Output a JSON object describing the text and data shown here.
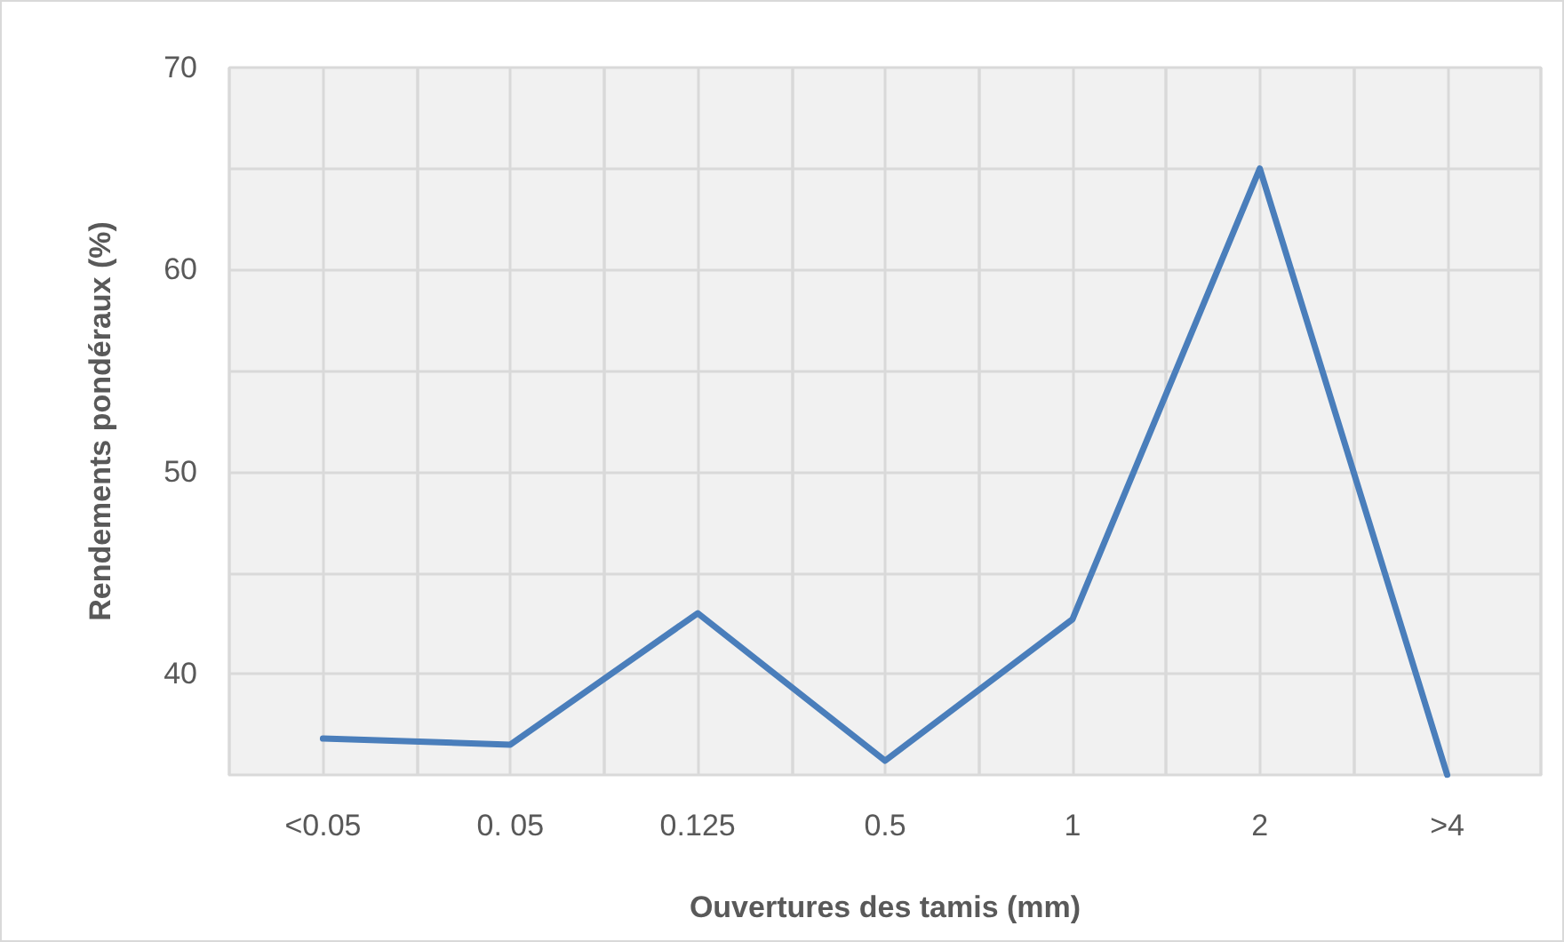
{
  "chart_data": {
    "type": "line",
    "xlabel": "Ouvertures des tamis (mm)",
    "ylabel": "Rendements pondéraux (%)",
    "categories": [
      "<0.05",
      "0. 05",
      "0.125",
      "0.5",
      "1",
      "2",
      ">4"
    ],
    "series": [
      {
        "color": "#4a7ebb",
        "values": [
          36.8,
          36.5,
          43.0,
          35.7,
          42.7,
          65.0,
          35.0
        ]
      }
    ],
    "ylim": [
      35,
      70
    ],
    "yticks": [
      40,
      {
        "value": 45,
        "label": null
      },
      50,
      {
        "value": 55,
        "label": null
      },
      60,
      {
        "value": 65,
        "label": null
      },
      70
    ],
    "grid": true
  }
}
